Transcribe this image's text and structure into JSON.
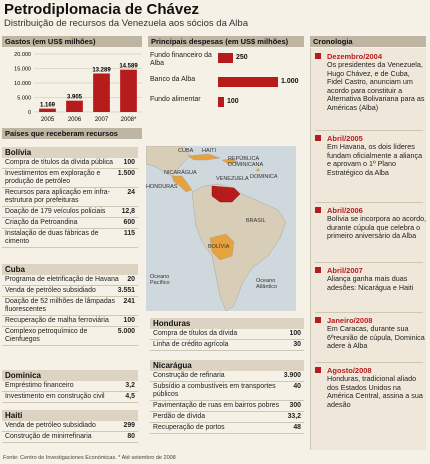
{
  "header": {
    "title": "Petrodiplomacia de Chávez",
    "subtitle": "Distribuição de recursos da Venezuela aos sócios da Alba"
  },
  "gastos": {
    "heading": "Gastos (em US$ milhões)",
    "y_ticks": [
      "20.000",
      "15.000",
      "10.000",
      "5.000",
      "0"
    ]
  },
  "chart_data": [
    {
      "type": "bar",
      "title": "Gastos (em US$ milhões)",
      "categories": [
        "2005",
        "2006",
        "2007",
        "2008*"
      ],
      "values": [
        1169,
        3905,
        13289,
        14589
      ],
      "value_labels": [
        "1.169",
        "3.905",
        "13.289",
        "14.589"
      ],
      "ylim": [
        0,
        20000
      ],
      "grid": true,
      "colors": {
        "bar": "#b71c1c"
      }
    },
    {
      "type": "bar",
      "title": "Principais despesas (em US$ milhões)",
      "categories": [
        "Fundo financeiro da Alba",
        "Banco da Alba",
        "Fundo alimentar"
      ],
      "values": [
        250,
        1000,
        100
      ],
      "value_labels": [
        "250",
        "1.000",
        "100"
      ],
      "orientation": "horizontal",
      "colors": {
        "bar": "#b71c1c"
      }
    }
  ],
  "despesas": {
    "heading": "Principais despesas (em US$ milhões)",
    "rows": [
      {
        "label": "Fundo financeiro da Alba",
        "value": "250"
      },
      {
        "label": "Banco da Alba",
        "value": "1.000"
      },
      {
        "label": "Fundo alimentar",
        "value": "100"
      }
    ]
  },
  "paises": {
    "heading": "Países que receberam recursos",
    "bolivia": {
      "name": "Bolívia",
      "rows": [
        {
          "label": "Compra de títulos da dívida pública",
          "value": "100"
        },
        {
          "label": "Investimentos em exploração e produção de petróleo",
          "value": "1.500"
        },
        {
          "label": "Recursos para aplicação em infra-estrutura por prefeituras",
          "value": "24"
        },
        {
          "label": "Doação de 179 veículos policiais",
          "value": "12,8"
        },
        {
          "label": "Criação da Petroandina",
          "value": "600"
        },
        {
          "label": "Instalação de duas fábricas de cimento",
          "value": "115"
        }
      ]
    },
    "cuba": {
      "name": "Cuba",
      "rows": [
        {
          "label": "Programa de eletrificação de Havana",
          "value": "20"
        },
        {
          "label": "Venda de petróleo subsidiado",
          "value": "3.551"
        },
        {
          "label": "Doação de 52 milhões de lâmpadas fluorescentes",
          "value": "241"
        },
        {
          "label": "Recuperação de malha ferroviária",
          "value": "100"
        },
        {
          "label": "Complexo petroquímico de Cienfuegos",
          "value": "5.000"
        }
      ]
    },
    "dominica": {
      "name": "Dominica",
      "rows": [
        {
          "label": "Empréstimo financeiro",
          "value": "3,2"
        },
        {
          "label": "Investimento em construção civil",
          "value": "4,5"
        }
      ]
    },
    "haiti": {
      "name": "Haiti",
      "rows": [
        {
          "label": "Venda de petróleo subsidiado",
          "value": "299"
        },
        {
          "label": "Construção de minirrefinaria",
          "value": "80"
        }
      ]
    },
    "honduras": {
      "name": "Honduras",
      "rows": [
        {
          "label": "Compra de títulos da dívida",
          "value": "100"
        },
        {
          "label": "Linha de crédito agrícola",
          "value": "30"
        }
      ]
    },
    "nicaragua": {
      "name": "Nicarágua",
      "rows": [
        {
          "label": "Construção de refinaria",
          "value": "3.900"
        },
        {
          "label": "Subsídio a combustíveis em transportes públicos",
          "value": "40"
        },
        {
          "label": "Pavimentação de ruas em bairros pobres",
          "value": "300"
        },
        {
          "label": "Perdão de dívida",
          "value": "33,2"
        },
        {
          "label": "Recuperação de portos",
          "value": "48"
        }
      ]
    }
  },
  "map": {
    "labels": {
      "cuba": "CUBA",
      "haiti": "HAITI",
      "rep_dom": "REPÚBLICA DOMINICANA",
      "dominica": "DOMINICA",
      "nicaragua": "NICARÁGUA",
      "honduras": "HONDURAS",
      "venezuela": "VENEZUELA",
      "brasil": "BRASIL",
      "bolivia": "BOLÍVIA",
      "pacifico": "Oceano Pacífico",
      "atlantico": "Oceano Atlântico"
    },
    "colors": {
      "ocean": "#cfd8dc",
      "land": "#d8cdb7",
      "alba": "#e6a23c",
      "venezuela": "#b71c1c"
    }
  },
  "cronologia": {
    "heading": "Cronologia",
    "items": [
      {
        "date": "Dezembro/2004",
        "text": "Os presidentes da Venezuela, Hugo Chávez, e de Cuba, Fidel Castro, anunciam um acordo para constituir a Alternativa Bolivariana para as Américas (Alba)"
      },
      {
        "date": "Abril/2005",
        "text": "Em Havana, os dois líderes fundam oficialmente a aliança e aprovam o 1º Plano Estratégico da Alba"
      },
      {
        "date": "Abril/2006",
        "text": "Bolívia se incorpora ao acordo, durante cúpula que celebra o primeiro aniversário da Alba"
      },
      {
        "date": "Abril/2007",
        "text": "Aliança ganha mais duas adesões: Nicarágua e Haiti"
      },
      {
        "date": "Janeiro/2008",
        "text": "Em Caracas, durante sua 6ªreunião de cúpula, Dominica adere à Alba"
      },
      {
        "date": "Agosto/2008",
        "text": "Honduras, tradicional aliado dos Estados Unidos na América Central, assina a sua adesão"
      }
    ]
  },
  "source": "Fonte: Centro de Investigaciones Económicas. * Até setembro de 2008"
}
